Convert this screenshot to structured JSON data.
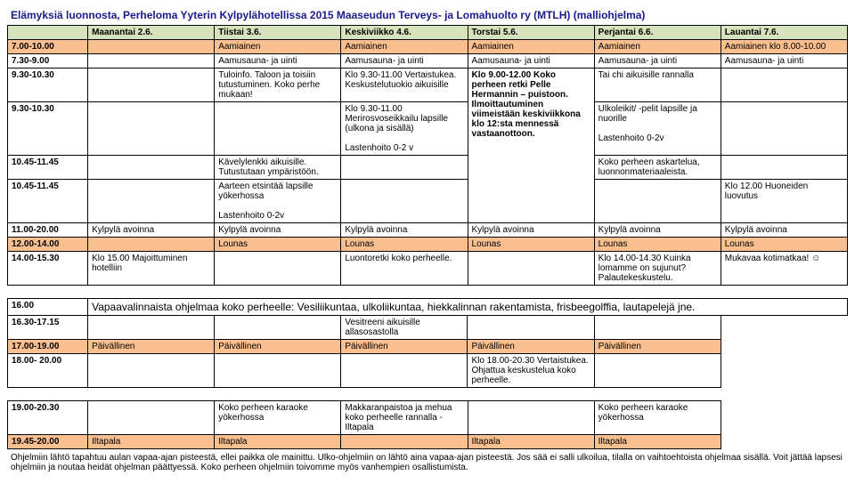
{
  "title": "Elämyksiä luonnosta, Perheloma Yyterin Kylpylähotellissa 2015 Maaseudun Terveys- ja Lomahuolto ry (MTLH)  (malliohjelma)",
  "days": {
    "mon": "Maanantai 2.6.",
    "tue": "Tiistai 3.6.",
    "wed": "Keskiviikko 4.6.",
    "thu": "Torstai 5.6.",
    "fri": "Perjantai 6.6.",
    "sat": "Lauantai 7.6."
  },
  "rows": {
    "r1": {
      "time": "7.00-10.00",
      "tue": "Aamiainen",
      "wed": "Aamiainen",
      "thu": "Aamiainen",
      "fri": "Aamiainen",
      "sat": "Aamiainen klo 8.00-10.00"
    },
    "r2": {
      "time": "7.30-9.00",
      "tue": "Aamusauna- ja uinti",
      "wed": "Aamusauna- ja uinti",
      "thu": "Aamusauna- ja uinti",
      "fri": "Aamusauna- ja uinti",
      "sat": "Aamusauna- ja uinti"
    },
    "r3": {
      "time": "9.30-10.30",
      "tue": "Tuloinfo. Taloon ja toisiin tutustuminen. Koko perhe mukaan!",
      "wed": "Klo 9.30-11.00 Vertaistukea. Keskustelutuokio aikuisille",
      "thu": "Klo 9.00-12.00 Koko perheen retki Pelle Hermannin – puistoon. Ilmoittautuminen viimeistään keskiviikkona klo 12:sta mennessä vastaanottoon.",
      "fri": "Tai chi aikuisille rannalla"
    },
    "r4": {
      "time": "9.30-10.30",
      "wed": "Klo 9.30-11.00 Merirosvoseikkailu lapsille (ulkona ja sisällä)\n\nLastenhoito 0-2 v",
      "fri": "Ulkoleikit/ -pelit lapsille ja nuorille\n\nLastenhoito 0-2v"
    },
    "r5": {
      "time": "10.45-11.45",
      "tue": "Kävelylenkki aikuisille. Tutustutaan ympäristöön.",
      "fri": "Koko perheen askartelua, luonnonmateriaaleista."
    },
    "r6": {
      "time": "10.45-11.45",
      "tue": "Aarteen etsintää lapsille yökerhossa\n\nLastenhoito 0-2v",
      "sat": "Klo 12.00 Huoneiden luovutus"
    },
    "r7": {
      "time": "11.00-20.00",
      "mon": "Kylpylä avoinna",
      "tue": "Kylpylä avoinna",
      "wed": "Kylpylä avoinna",
      "thu": "Kylpylä avoinna",
      "fri": "Kylpylä avoinna",
      "sat": "Kylpylä avoinna"
    },
    "r8": {
      "time": "12.00-14.00",
      "tue": "Lounas",
      "wed": "Lounas",
      "thu": "Lounas",
      "fri": "Lounas",
      "sat": "Lounas"
    },
    "r9": {
      "time": "14.00-15.30",
      "mon": "Klo 15.00 Majoittuminen hotelliin",
      "wed": "Luontoretki koko perheelle.",
      "fri": "Klo 14.00-14.30 Kuinka lomamme on sujunut? Palautekeskustelu.",
      "sat": "Mukavaa kotimatkaa! ☺"
    },
    "r10": {
      "time": "16.00",
      "body": "Vapaavalinnaista ohjelmaa koko perheelle: Vesiliikuntaa, ulkoliikuntaa, hiekkalinnan rakentamista, frisbeegolffia, lautapelejä jne."
    },
    "r11": {
      "time": "16.30-17.15",
      "wed": "Vesitreeni aikuisille allasosastolla"
    },
    "r12": {
      "time": "17.00-19.00",
      "mon": "Päivällinen",
      "tue": "Päivällinen",
      "wed": "Päivällinen",
      "thu": "Päivällinen",
      "fri": "Päivällinen"
    },
    "r13": {
      "time": "18.00- 20.00",
      "thu": "Klo 18.00-20.30 Vertaistukea. Ohjattua keskustelua koko perheelle."
    },
    "r14": {
      "time": "19.00-20.30",
      "tue": "Koko perheen karaoke yökerhossa",
      "wed": "Makkaranpaistoa ja mehua koko perheelle rannalla - Iltapala",
      "fri": "Koko perheen karaoke yökerhossa"
    },
    "r15": {
      "time": "19.45-20.00",
      "mon": "Iltapala",
      "tue": "Iltapala",
      "thu": "Iltapala",
      "fri": "Iltapala"
    }
  },
  "footer": "Ohjelmiin lähtö tapahtuu aulan vapaa-ajan pisteestä, ellei paikka ole mainittu. Ulko-ohjelmiin on lähtö aina vapaa-ajan pisteestä. Jos sää ei salli ulkoilua, tilalla on vaihtoehtoista ohjelmaa sisällä.  Voit jättää lapsesi ohjelmiin ja noutaa heidät ohjelman päättyessä. Koko perheen ohjelmiin toivomme myös vanhempien osallistumista."
}
